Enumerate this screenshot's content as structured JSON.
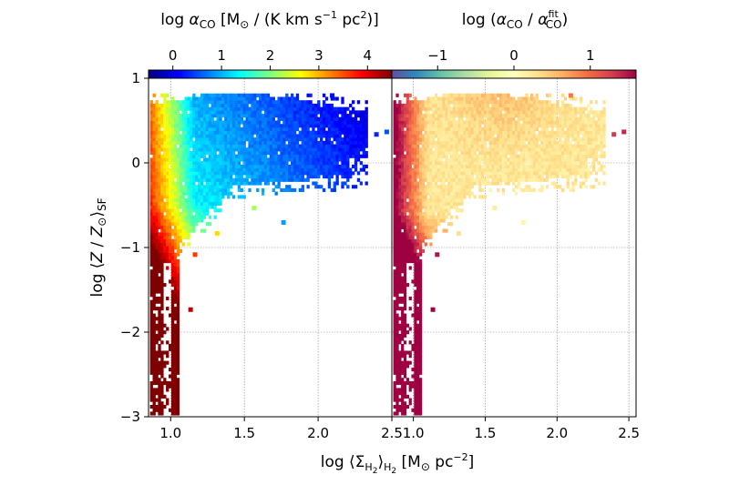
{
  "chart_data": [
    {
      "type": "heatmap",
      "panel": "left",
      "xlabel": "log ⟨Σ_H2⟩_H2 [M⊙ pc⁻²]",
      "ylabel": "log ⟨Z / Z⊙⟩_SF",
      "xlim": [
        0.85,
        2.5
      ],
      "ylim": [
        -3,
        1
      ],
      "xticks": [
        "1.0",
        "1.5",
        "2.0",
        "2.5"
      ],
      "yticks": [
        "−3",
        "−2",
        "−1",
        "0",
        "1"
      ],
      "colorbar": {
        "label": "log α_CO [M⊙ / (K km s⁻¹ pc²)]",
        "position": "top",
        "range": [
          -0.5,
          4.5
        ],
        "ticks": [
          "0",
          "1",
          "2",
          "3",
          "4"
        ],
        "colormap": "jet"
      },
      "grid": true,
      "trend": "alpha_CO is high (~4) at low Σ_H2 and low Z, decreasing to ~0.3 at high Σ_H2 and solar-to-supersolar Z; main cloud spans x 1.0–2.3, y −0.3 to 0.8"
    },
    {
      "type": "heatmap",
      "panel": "right",
      "xlim": [
        0.85,
        2.55
      ],
      "ylim": [
        -3,
        1
      ],
      "xticks": [
        "1.0",
        "1.5",
        "2.0",
        "2.5"
      ],
      "colorbar": {
        "label": "log (α_CO / α_CO^fit)",
        "position": "top",
        "range": [
          -1.6,
          1.6
        ],
        "ticks": [
          "−1",
          "0",
          "1"
        ],
        "colormap": "Spectral_r"
      },
      "grid": true,
      "trend": "residuals near 0 in the main cloud, positive (~0.5) in the upper middle, strongly positive (>1.5) in the low-Σ_H2 low-Z tail"
    }
  ],
  "colors": {
    "jet": [
      "#00007f",
      "#0000ff",
      "#007fff",
      "#00ffff",
      "#7fff7f",
      "#ffff00",
      "#ff7f00",
      "#ff0000",
      "#7f0000"
    ],
    "spectral_r": [
      "#5e4fa2",
      "#3288bd",
      "#66c2a5",
      "#abdda4",
      "#e6f598",
      "#ffffbf",
      "#fee08b",
      "#fdae61",
      "#f46d43",
      "#d53e4f",
      "#9e0142"
    ]
  }
}
